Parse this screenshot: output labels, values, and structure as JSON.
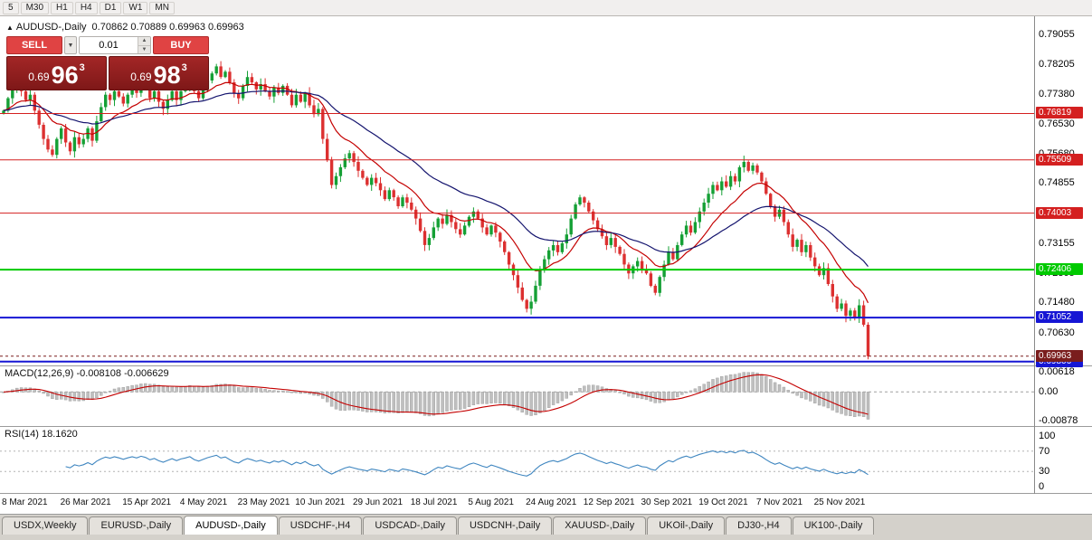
{
  "toolbar": {
    "periods": [
      "5",
      "M30",
      "H1",
      "H4",
      "D1",
      "W1",
      "MN"
    ]
  },
  "chart": {
    "symbol_title": "AUDUSD-,Daily",
    "ohlc": "0.70862 0.70889 0.69963 0.69963",
    "trade_panel": {
      "sell_label": "SELL",
      "buy_label": "BUY",
      "volume": "0.01",
      "bid": {
        "prefix": "0.69",
        "big": "96",
        "sup": "3"
      },
      "ask": {
        "prefix": "0.69",
        "big": "98",
        "sup": "3"
      }
    },
    "price_axis_labels": [
      0.79055,
      0.78205,
      0.7738,
      0.7653,
      0.7568,
      0.74855,
      0.74005,
      0.73155,
      0.72305,
      0.7148,
      0.7063,
      0.6978
    ],
    "levels": [
      {
        "price": 0.76819,
        "label": "0.76819",
        "color": "#d42020",
        "width": 1
      },
      {
        "price": 0.75509,
        "label": "0.75509",
        "color": "#d42020",
        "width": 1
      },
      {
        "price": 0.74003,
        "label": "0.74003",
        "color": "#d42020",
        "width": 1
      },
      {
        "price": 0.72406,
        "label": "0.72406",
        "color": "#00ca00",
        "width": 2
      },
      {
        "price": 0.71052,
        "label": "0.71052",
        "color": "#1616d4",
        "width": 2
      },
      {
        "price": 0.69806,
        "label": "0.69806",
        "color": "#1616d4",
        "width": 2
      }
    ],
    "bid_line": {
      "price": 0.69963,
      "label": "0.69963",
      "color": "#7a1d1d"
    }
  },
  "macd_panel": {
    "label": "MACD(12,26,9) -0.008108 -0.006629",
    "axis_labels": [
      "0.00618",
      "0.00",
      "-0.00878"
    ],
    "axis_values": [
      0.00618,
      0,
      -0.00878
    ]
  },
  "rsi_panel": {
    "label": "RSI(14) 18.1620",
    "axis_labels": [
      "100",
      "70",
      "30",
      "0"
    ],
    "axis_values": [
      100,
      70,
      30,
      0
    ],
    "level_lines": [
      70,
      30
    ]
  },
  "time_axis": {
    "labels": [
      "8 Mar 2021",
      "26 Mar 2021",
      "15 Apr 2021",
      "4 May 2021",
      "23 May 2021",
      "10 Jun 2021",
      "29 Jun 2021",
      "18 Jul 2021",
      "5 Aug 2021",
      "24 Aug 2021",
      "12 Sep 2021",
      "30 Sep 2021",
      "19 Oct 2021",
      "7 Nov 2021",
      "25 Nov 2021"
    ],
    "indices": [
      0,
      14,
      28,
      41,
      54,
      67,
      80,
      93,
      106,
      119,
      132,
      145,
      158,
      171,
      184
    ]
  },
  "tabs": [
    "USDX,Weekly",
    "EURUSD-,Daily",
    "AUDUSD-,Daily",
    "USDCHF-,H4",
    "USDCAD-,Daily",
    "USDCNH-,Daily",
    "XAUUSD-,Daily",
    "UKOil-,Daily",
    "DJ30-,H4",
    "UK100-,Daily"
  ],
  "active_tab": "AUDUSD-,Daily",
  "colors": {
    "candle_up": "#15a035",
    "candle_down": "#dc3030",
    "ma_fast": "#c40000",
    "ma_slow": "#14146e",
    "macd_hist": "#bfbfbf",
    "macd_hist_edge": "#9a9a9a",
    "macd_signal": "#c40000",
    "rsi_line": "#3f86c0",
    "rsi_level": "#b4b4b4",
    "zero_line": "#a0a0a0"
  },
  "chart_data": {
    "type": "candlestick",
    "symbol": "AUDUSD",
    "timeframe": "Daily",
    "title": "AUDUSD-,Daily",
    "price_range": [
      0.6975,
      0.7926
    ],
    "indicators": {
      "ma_fast_period": 13,
      "ma_slow_period": 34,
      "macd": [
        12,
        26,
        9
      ],
      "rsi_period": 14
    },
    "last_bar": {
      "open": 0.70862,
      "high": 0.70889,
      "low": 0.69963,
      "close": 0.69963
    },
    "closes": [
      0.769,
      0.7725,
      0.775,
      0.777,
      0.7745,
      0.772,
      0.7735,
      0.769,
      0.765,
      0.761,
      0.758,
      0.7565,
      0.761,
      0.764,
      0.76,
      0.7575,
      0.7615,
      0.7595,
      0.761,
      0.764,
      0.7605,
      0.766,
      0.77,
      0.7735,
      0.772,
      0.7745,
      0.773,
      0.771,
      0.7735,
      0.7755,
      0.774,
      0.777,
      0.7755,
      0.7725,
      0.7745,
      0.7715,
      0.7695,
      0.772,
      0.7745,
      0.772,
      0.7745,
      0.776,
      0.778,
      0.7745,
      0.7725,
      0.775,
      0.7775,
      0.7795,
      0.7815,
      0.7785,
      0.78,
      0.777,
      0.774,
      0.7725,
      0.776,
      0.7785,
      0.777,
      0.775,
      0.7765,
      0.7745,
      0.773,
      0.7755,
      0.774,
      0.776,
      0.7735,
      0.7705,
      0.7735,
      0.7715,
      0.774,
      0.7705,
      0.768,
      0.7695,
      0.761,
      0.755,
      0.748,
      0.7505,
      0.753,
      0.7555,
      0.757,
      0.7545,
      0.752,
      0.75,
      0.748,
      0.75,
      0.7485,
      0.7465,
      0.744,
      0.7465,
      0.7445,
      0.742,
      0.7445,
      0.743,
      0.741,
      0.7385,
      0.735,
      0.731,
      0.733,
      0.736,
      0.7385,
      0.737,
      0.7395,
      0.7375,
      0.7355,
      0.734,
      0.7365,
      0.739,
      0.7405,
      0.7385,
      0.736,
      0.734,
      0.7365,
      0.7345,
      0.732,
      0.729,
      0.7255,
      0.7225,
      0.719,
      0.7155,
      0.713,
      0.715,
      0.7195,
      0.724,
      0.727,
      0.7295,
      0.731,
      0.729,
      0.7315,
      0.734,
      0.7385,
      0.7425,
      0.7445,
      0.743,
      0.7405,
      0.738,
      0.7355,
      0.7335,
      0.731,
      0.733,
      0.7305,
      0.7285,
      0.7255,
      0.723,
      0.725,
      0.7265,
      0.724,
      0.723,
      0.7195,
      0.7175,
      0.722,
      0.7255,
      0.729,
      0.727,
      0.731,
      0.734,
      0.7365,
      0.7345,
      0.7375,
      0.7405,
      0.743,
      0.7455,
      0.748,
      0.7465,
      0.749,
      0.7475,
      0.7505,
      0.749,
      0.753,
      0.7545,
      0.752,
      0.7535,
      0.7515,
      0.749,
      0.7455,
      0.742,
      0.739,
      0.741,
      0.7375,
      0.734,
      0.7305,
      0.7325,
      0.729,
      0.731,
      0.7275,
      0.725,
      0.7225,
      0.7245,
      0.72,
      0.7165,
      0.713,
      0.7145,
      0.711,
      0.7125,
      0.7105,
      0.714,
      0.7085,
      0.6996
    ]
  }
}
